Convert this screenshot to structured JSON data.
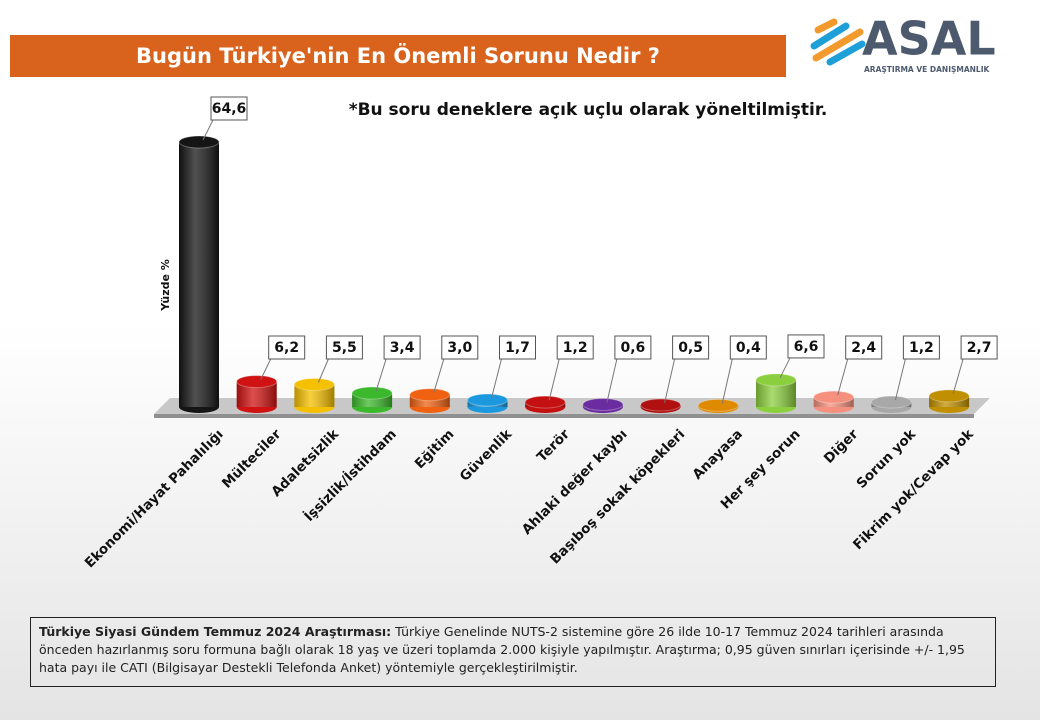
{
  "chart_data": {
    "type": "bar3d",
    "title": "Bugün Türkiye'nin En Önemli Sorunu Nedir ?",
    "subtitle": "*Bu soru deneklere açık uçlu olarak yöneltilmiştir.",
    "y_label": "Yüzde  %",
    "categories": [
      "Ekonomi/Hayat Pahalılığı",
      "Mülteciler",
      "Adaletsizlik",
      "İşsizlik/İstihdam",
      "Eğitim",
      "Güvenlik",
      "Terör",
      "Ahlaki değer kaybı",
      "Başıboş sokak köpekleri",
      "Anayasa",
      "Her şey sorun",
      "Diğer",
      "Sorun yok",
      "Fikrim yok/Cevap yok"
    ],
    "values": [
      64.6,
      6.2,
      5.5,
      3.4,
      3.0,
      1.7,
      1.2,
      0.6,
      0.5,
      0.4,
      6.6,
      2.4,
      1.2,
      2.7
    ],
    "value_labels": [
      "64,6",
      "6,2",
      "5,5",
      "3,4",
      "3,0",
      "1,7",
      "1,2",
      "0,6",
      "0,5",
      "0,4",
      "6,6",
      "2,4",
      "1,2",
      "2,7"
    ],
    "colors": [
      "#151515",
      "#d01212",
      "#f5c000",
      "#3cb82c",
      "#f06212",
      "#1c98de",
      "#c41010",
      "#6a2ca0",
      "#b01010",
      "#e08a00",
      "#8ccf3e",
      "#f5907e",
      "#a8a8a8",
      "#c09000"
    ]
  },
  "logo": {
    "name": "ASAL",
    "tagline": "ARAŞTIRMA VE DANIŞMANLIK"
  },
  "footnote": {
    "bold": "Türkiye Siyasi Gündem Temmuz 2024 Araştırması:",
    "text": "Türkiye Genelinde NUTS-2 sistemine göre 26 ilde 10-17 Temmuz 2024 tarihleri arasında önceden hazırlanmış soru formuna bağlı olarak 18 yaş ve üzeri toplamda 2.000 kişiyle yapılmıştır. Araştırma; 0,95 güven sınırları içerisinde +/- 1,95 hata payı ile CATI (Bilgisayar Destekli Telefonda Anket) yöntemiyle gerçekleştirilmiştir."
  }
}
